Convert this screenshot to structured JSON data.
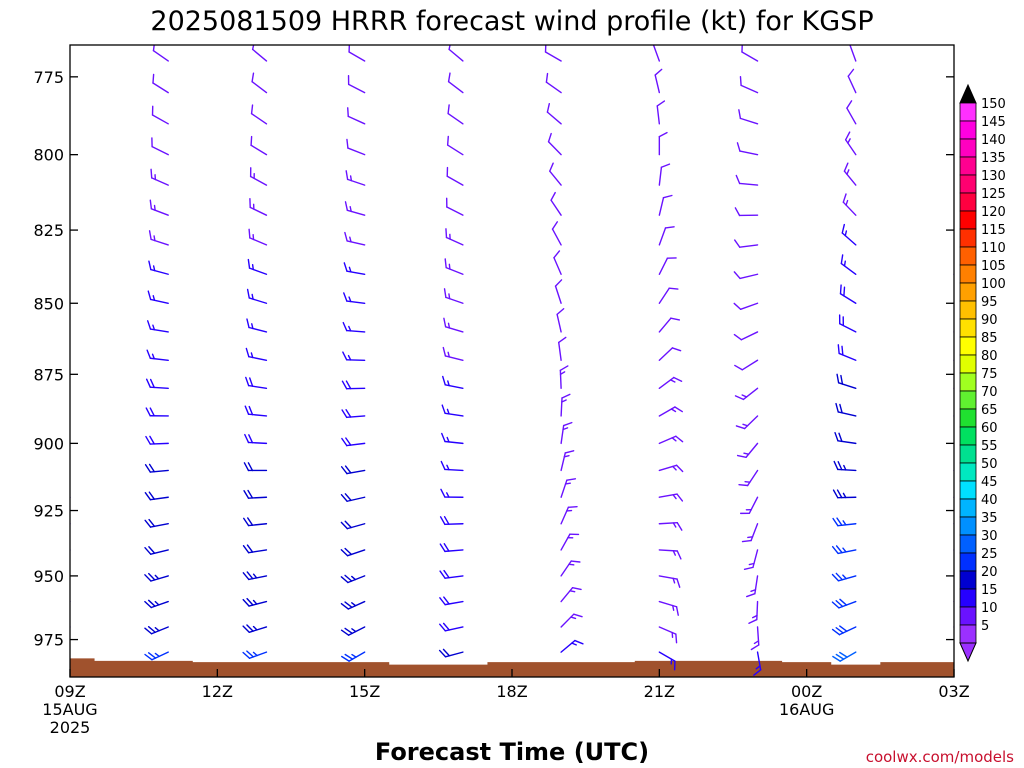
{
  "chart_data": {
    "type": "wind-barb-profile",
    "title": "2025081509 HRRR forecast wind profile (kt) for KGSP",
    "xlabel": "Forecast Time (UTC)",
    "ylabel": "",
    "xlim": [
      0,
      18
    ],
    "ylim": [
      765,
      990
    ],
    "y_scale": "log",
    "y_inverted": true,
    "x_ticks": [
      {
        "x": 0,
        "label": "09Z",
        "sub": [
          "15AUG",
          "2025"
        ]
      },
      {
        "x": 3,
        "label": "12Z",
        "sub": []
      },
      {
        "x": 6,
        "label": "15Z",
        "sub": []
      },
      {
        "x": 9,
        "label": "18Z",
        "sub": []
      },
      {
        "x": 12,
        "label": "21Z",
        "sub": []
      },
      {
        "x": 15,
        "label": "00Z",
        "sub": [
          "16AUG"
        ]
      },
      {
        "x": 18,
        "label": "03Z",
        "sub": []
      }
    ],
    "y_ticks": [
      775,
      800,
      825,
      850,
      875,
      900,
      925,
      950,
      975
    ],
    "pressure_levels": [
      770,
      780,
      790,
      800,
      810,
      820,
      830,
      840,
      850,
      860,
      870,
      880,
      890,
      900,
      910,
      920,
      930,
      940,
      950,
      960,
      970,
      980
    ],
    "surface_pressure": [
      {
        "x": 0,
        "p": 982.5
      },
      {
        "x": 0.5,
        "p": 983.5
      },
      {
        "x": 2.5,
        "p": 984
      },
      {
        "x": 6.5,
        "p": 985
      },
      {
        "x": 8.5,
        "p": 984
      },
      {
        "x": 11.5,
        "p": 983.5
      },
      {
        "x": 14.5,
        "p": 984
      },
      {
        "x": 15.5,
        "p": 985
      },
      {
        "x": 16.5,
        "p": 984
      },
      {
        "x": 18,
        "p": 984
      }
    ],
    "profiles": [
      {
        "x": 2,
        "dir_top": 305,
        "dir_bottom": 245,
        "spd_top": 10,
        "spd_bottom": 25
      },
      {
        "x": 4,
        "dir_top": 310,
        "dir_bottom": 250,
        "spd_top": 10,
        "spd_bottom": 25
      },
      {
        "x": 6,
        "dir_top": 300,
        "dir_bottom": 240,
        "spd_top": 10,
        "spd_bottom": 25
      },
      {
        "x": 8,
        "dir_top": 310,
        "dir_bottom": 255,
        "spd_top": 10,
        "spd_bottom": 20
      },
      {
        "x": 10,
        "dir_top": 300,
        "dir_bottom": 50,
        "spd_top": 10,
        "spd_bottom": 15
      },
      {
        "x": 12,
        "dir_top": 340,
        "dir_bottom": 120,
        "spd_top": 10,
        "spd_bottom": 15
      },
      {
        "x": 14,
        "dir_top": 300,
        "dir_bottom": 170,
        "spd_top": 10,
        "spd_bottom": 15
      },
      {
        "x": 16,
        "dir_top": 340,
        "dir_bottom": 240,
        "spd_top": 10,
        "spd_bottom": 30
      }
    ],
    "edge_profiles": [
      {
        "x": 0,
        "dir": 250,
        "spd": 10,
        "p_top": 915,
        "p_bottom": 975
      },
      {
        "x": 18,
        "dir": 150,
        "spd": 10,
        "p_top": 835,
        "p_bottom": 975
      }
    ],
    "colorbar": {
      "levels": [
        5,
        10,
        15,
        20,
        25,
        30,
        35,
        40,
        45,
        50,
        55,
        60,
        65,
        70,
        75,
        80,
        85,
        90,
        95,
        100,
        105,
        110,
        115,
        120,
        125,
        130,
        135,
        140,
        145,
        150
      ],
      "colors": [
        "#9b30ff",
        "#6a12ff",
        "#2600ff",
        "#0000d0",
        "#0030ff",
        "#0060ff",
        "#0090ff",
        "#00b4ff",
        "#00e0ff",
        "#00e8c0",
        "#00e090",
        "#00e060",
        "#20e030",
        "#60f030",
        "#a0ff20",
        "#e0ff00",
        "#ffff00",
        "#ffe000",
        "#ffc000",
        "#ffa000",
        "#ff8000",
        "#ff6000",
        "#ff3000",
        "#ff0000",
        "#ff0040",
        "#ff0070",
        "#ff0090",
        "#ff00c0",
        "#ff00e0",
        "#ff30ff"
      ],
      "top_cap_color": "#000000",
      "bottom_cap_color": "#9b30ff"
    }
  },
  "credit": "coolwx.com/models"
}
